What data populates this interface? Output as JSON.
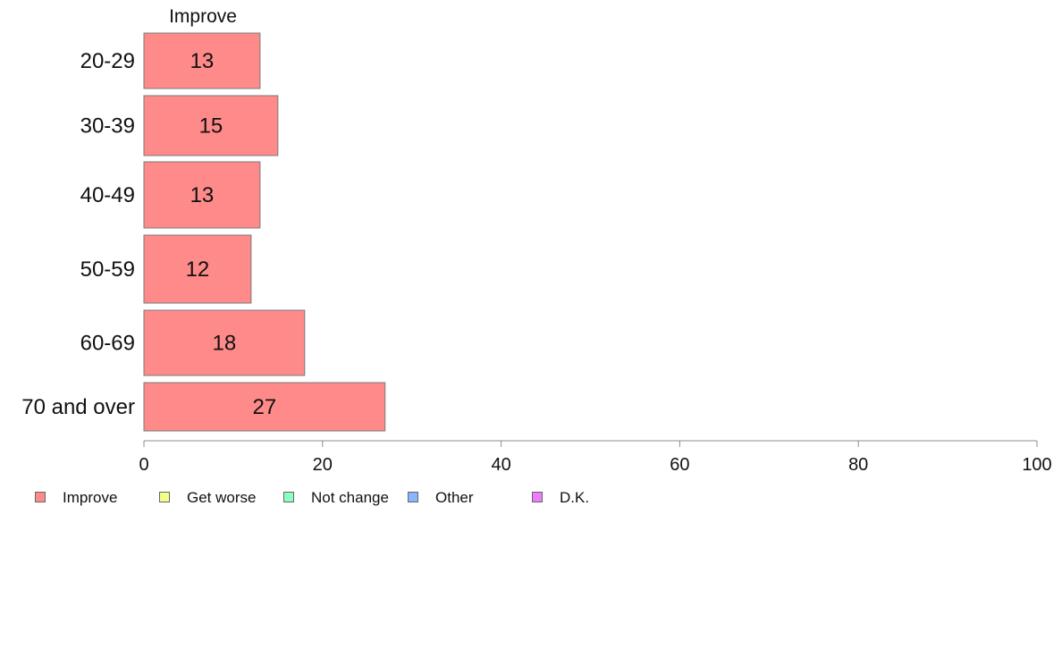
{
  "chart_data": {
    "type": "bar",
    "orientation": "horizontal",
    "title": "Improve",
    "categories": [
      "20-29",
      "30-39",
      "40-49",
      "50-59",
      "60-69",
      "70 and over"
    ],
    "series": [
      {
        "name": "Improve",
        "values": [
          13,
          15,
          13,
          12,
          18,
          27
        ],
        "color": "#ff8a8a"
      }
    ],
    "data_labels": [
      "13",
      "15",
      "13",
      "12",
      "18",
      "27"
    ],
    "xlim": [
      0,
      100
    ],
    "x_ticks": [
      0,
      20,
      40,
      60,
      80,
      100
    ],
    "grid": false,
    "legend_position": "bottom"
  },
  "legend": [
    {
      "label": "Improve",
      "color": "#ff8a8a"
    },
    {
      "label": "Get worse",
      "color": "#f3ff8a"
    },
    {
      "label": "Not change",
      "color": "#8affc2"
    },
    {
      "label": "Other",
      "color": "#8ab6ff"
    },
    {
      "label": "D.K.",
      "color": "#ef7bff"
    }
  ]
}
